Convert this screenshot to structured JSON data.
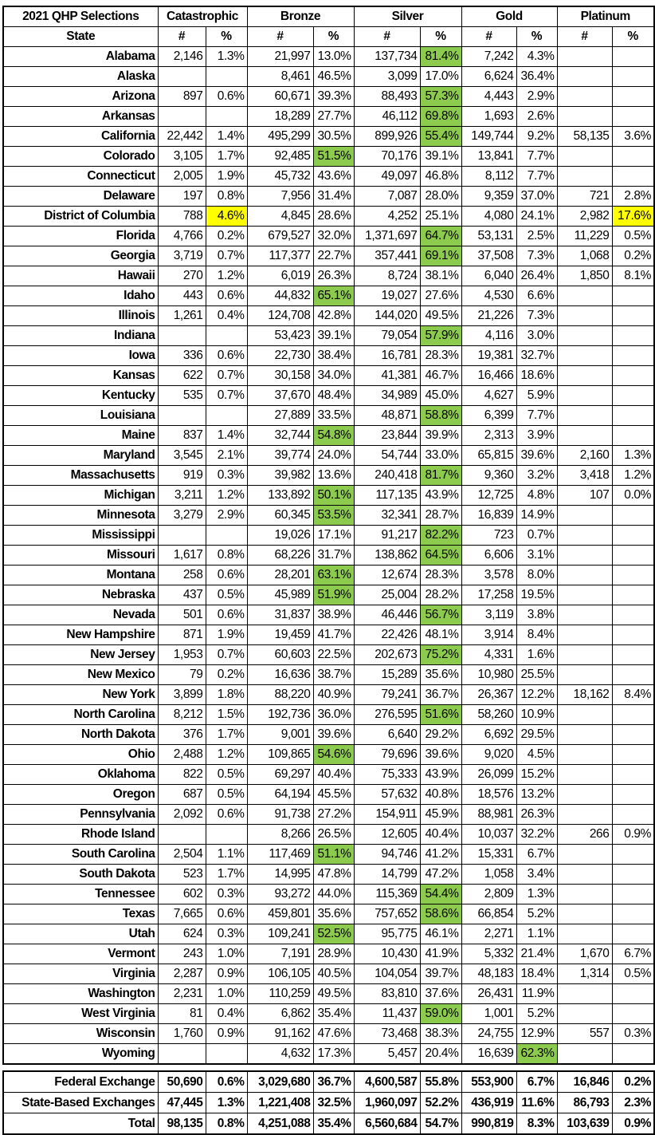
{
  "title": "2021 QHP Selections",
  "metal_levels": [
    "Catastrophic",
    "Bronze",
    "Silver",
    "Gold",
    "Platinum"
  ],
  "subheader": {
    "state": "State",
    "count": "#",
    "pct": "%"
  },
  "colors": {
    "majority_highlight": "#8DCB4F",
    "outlier_highlight": "#FFFF00",
    "border": "#000000"
  },
  "rows": [
    {
      "state": "Alabama",
      "values": [
        "2,146",
        "1.3%",
        "21,997",
        "13.0%",
        "137,734",
        "81.4%",
        "7,242",
        "4.3%",
        "",
        ""
      ],
      "green": [
        5
      ]
    },
    {
      "state": "Alaska",
      "values": [
        "",
        "",
        "8,461",
        "46.5%",
        "3,099",
        "17.0%",
        "6,624",
        "36.4%",
        "",
        ""
      ]
    },
    {
      "state": "Arizona",
      "values": [
        "897",
        "0.6%",
        "60,671",
        "39.3%",
        "88,493",
        "57.3%",
        "4,443",
        "2.9%",
        "",
        ""
      ],
      "green": [
        5
      ]
    },
    {
      "state": "Arkansas",
      "values": [
        "",
        "",
        "18,289",
        "27.7%",
        "46,112",
        "69.8%",
        "1,693",
        "2.6%",
        "",
        ""
      ],
      "green": [
        5
      ]
    },
    {
      "state": "California",
      "values": [
        "22,442",
        "1.4%",
        "495,299",
        "30.5%",
        "899,926",
        "55.4%",
        "149,744",
        "9.2%",
        "58,135",
        "3.6%"
      ],
      "green": [
        5
      ]
    },
    {
      "state": "Colorado",
      "values": [
        "3,105",
        "1.7%",
        "92,485",
        "51.5%",
        "70,176",
        "39.1%",
        "13,841",
        "7.7%",
        "",
        ""
      ],
      "green": [
        3
      ]
    },
    {
      "state": "Connecticut",
      "values": [
        "2,005",
        "1.9%",
        "45,732",
        "43.6%",
        "49,097",
        "46.8%",
        "8,112",
        "7.7%",
        "",
        ""
      ]
    },
    {
      "state": "Delaware",
      "values": [
        "197",
        "0.8%",
        "7,956",
        "31.4%",
        "7,087",
        "28.0%",
        "9,359",
        "37.0%",
        "721",
        "2.8%"
      ]
    },
    {
      "state": "District of Columbia",
      "values": [
        "788",
        "4.6%",
        "4,845",
        "28.6%",
        "4,252",
        "25.1%",
        "4,080",
        "24.1%",
        "2,982",
        "17.6%"
      ],
      "yellow": [
        1,
        9
      ]
    },
    {
      "state": "Florida",
      "values": [
        "4,766",
        "0.2%",
        "679,527",
        "32.0%",
        "1,371,697",
        "64.7%",
        "53,131",
        "2.5%",
        "11,229",
        "0.5%"
      ],
      "green": [
        5
      ]
    },
    {
      "state": "Georgia",
      "values": [
        "3,719",
        "0.7%",
        "117,377",
        "22.7%",
        "357,441",
        "69.1%",
        "37,508",
        "7.3%",
        "1,068",
        "0.2%"
      ],
      "green": [
        5
      ]
    },
    {
      "state": "Hawaii",
      "values": [
        "270",
        "1.2%",
        "6,019",
        "26.3%",
        "8,724",
        "38.1%",
        "6,040",
        "26.4%",
        "1,850",
        "8.1%"
      ]
    },
    {
      "state": "Idaho",
      "values": [
        "443",
        "0.6%",
        "44,832",
        "65.1%",
        "19,027",
        "27.6%",
        "4,530",
        "6.6%",
        "",
        ""
      ],
      "green": [
        3
      ]
    },
    {
      "state": "Illinois",
      "values": [
        "1,261",
        "0.4%",
        "124,708",
        "42.8%",
        "144,020",
        "49.5%",
        "21,226",
        "7.3%",
        "",
        ""
      ]
    },
    {
      "state": "Indiana",
      "values": [
        "",
        "",
        "53,423",
        "39.1%",
        "79,054",
        "57.9%",
        "4,116",
        "3.0%",
        "",
        ""
      ],
      "green": [
        5
      ]
    },
    {
      "state": "Iowa",
      "values": [
        "336",
        "0.6%",
        "22,730",
        "38.4%",
        "16,781",
        "28.3%",
        "19,381",
        "32.7%",
        "",
        ""
      ]
    },
    {
      "state": "Kansas",
      "values": [
        "622",
        "0.7%",
        "30,158",
        "34.0%",
        "41,381",
        "46.7%",
        "16,466",
        "18.6%",
        "",
        ""
      ]
    },
    {
      "state": "Kentucky",
      "values": [
        "535",
        "0.7%",
        "37,670",
        "48.4%",
        "34,989",
        "45.0%",
        "4,627",
        "5.9%",
        "",
        ""
      ]
    },
    {
      "state": "Louisiana",
      "values": [
        "",
        "",
        "27,889",
        "33.5%",
        "48,871",
        "58.8%",
        "6,399",
        "7.7%",
        "",
        ""
      ],
      "green": [
        5
      ]
    },
    {
      "state": "Maine",
      "values": [
        "837",
        "1.4%",
        "32,744",
        "54.8%",
        "23,844",
        "39.9%",
        "2,313",
        "3.9%",
        "",
        ""
      ],
      "green": [
        3
      ]
    },
    {
      "state": "Maryland",
      "values": [
        "3,545",
        "2.1%",
        "39,774",
        "24.0%",
        "54,744",
        "33.0%",
        "65,815",
        "39.6%",
        "2,160",
        "1.3%"
      ]
    },
    {
      "state": "Massachusetts",
      "values": [
        "919",
        "0.3%",
        "39,982",
        "13.6%",
        "240,418",
        "81.7%",
        "9,360",
        "3.2%",
        "3,418",
        "1.2%"
      ],
      "green": [
        5
      ]
    },
    {
      "state": "Michigan",
      "values": [
        "3,211",
        "1.2%",
        "133,892",
        "50.1%",
        "117,135",
        "43.9%",
        "12,725",
        "4.8%",
        "107",
        "0.0%"
      ],
      "green": [
        3
      ]
    },
    {
      "state": "Minnesota",
      "values": [
        "3,279",
        "2.9%",
        "60,345",
        "53.5%",
        "32,341",
        "28.7%",
        "16,839",
        "14.9%",
        "",
        ""
      ],
      "green": [
        3
      ]
    },
    {
      "state": "Mississippi",
      "values": [
        "",
        "",
        "19,026",
        "17.1%",
        "91,217",
        "82.2%",
        "723",
        "0.7%",
        "",
        ""
      ],
      "green": [
        5
      ]
    },
    {
      "state": "Missouri",
      "values": [
        "1,617",
        "0.8%",
        "68,226",
        "31.7%",
        "138,862",
        "64.5%",
        "6,606",
        "3.1%",
        "",
        ""
      ],
      "green": [
        5
      ]
    },
    {
      "state": "Montana",
      "values": [
        "258",
        "0.6%",
        "28,201",
        "63.1%",
        "12,674",
        "28.3%",
        "3,578",
        "8.0%",
        "",
        ""
      ],
      "green": [
        3
      ]
    },
    {
      "state": "Nebraska",
      "values": [
        "437",
        "0.5%",
        "45,989",
        "51.9%",
        "25,004",
        "28.2%",
        "17,258",
        "19.5%",
        "",
        ""
      ],
      "green": [
        3
      ]
    },
    {
      "state": "Nevada",
      "values": [
        "501",
        "0.6%",
        "31,837",
        "38.9%",
        "46,446",
        "56.7%",
        "3,119",
        "3.8%",
        "",
        ""
      ],
      "green": [
        5
      ]
    },
    {
      "state": "New Hampshire",
      "values": [
        "871",
        "1.9%",
        "19,459",
        "41.7%",
        "22,426",
        "48.1%",
        "3,914",
        "8.4%",
        "",
        ""
      ]
    },
    {
      "state": "New Jersey",
      "values": [
        "1,953",
        "0.7%",
        "60,603",
        "22.5%",
        "202,673",
        "75.2%",
        "4,331",
        "1.6%",
        "",
        ""
      ],
      "green": [
        5
      ]
    },
    {
      "state": "New Mexico",
      "values": [
        "79",
        "0.2%",
        "16,636",
        "38.7%",
        "15,289",
        "35.6%",
        "10,980",
        "25.5%",
        "",
        ""
      ]
    },
    {
      "state": "New York",
      "values": [
        "3,899",
        "1.8%",
        "88,220",
        "40.9%",
        "79,241",
        "36.7%",
        "26,367",
        "12.2%",
        "18,162",
        "8.4%"
      ]
    },
    {
      "state": "North Carolina",
      "values": [
        "8,212",
        "1.5%",
        "192,736",
        "36.0%",
        "276,595",
        "51.6%",
        "58,260",
        "10.9%",
        "",
        ""
      ],
      "green": [
        5
      ]
    },
    {
      "state": "North Dakota",
      "values": [
        "376",
        "1.7%",
        "9,001",
        "39.6%",
        "6,640",
        "29.2%",
        "6,692",
        "29.5%",
        "",
        ""
      ]
    },
    {
      "state": "Ohio",
      "values": [
        "2,488",
        "1.2%",
        "109,865",
        "54.6%",
        "79,696",
        "39.6%",
        "9,020",
        "4.5%",
        "",
        ""
      ],
      "green": [
        3
      ]
    },
    {
      "state": "Oklahoma",
      "values": [
        "822",
        "0.5%",
        "69,297",
        "40.4%",
        "75,333",
        "43.9%",
        "26,099",
        "15.2%",
        "",
        ""
      ]
    },
    {
      "state": "Oregon",
      "values": [
        "687",
        "0.5%",
        "64,194",
        "45.5%",
        "57,632",
        "40.8%",
        "18,576",
        "13.2%",
        "",
        ""
      ]
    },
    {
      "state": "Pennsylvania",
      "values": [
        "2,092",
        "0.6%",
        "91,738",
        "27.2%",
        "154,911",
        "45.9%",
        "88,981",
        "26.3%",
        "",
        ""
      ]
    },
    {
      "state": "Rhode Island",
      "values": [
        "",
        "",
        "8,266",
        "26.5%",
        "12,605",
        "40.4%",
        "10,037",
        "32.2%",
        "266",
        "0.9%"
      ]
    },
    {
      "state": "South Carolina",
      "values": [
        "2,504",
        "1.1%",
        "117,469",
        "51.1%",
        "94,746",
        "41.2%",
        "15,331",
        "6.7%",
        "",
        ""
      ],
      "green": [
        3
      ]
    },
    {
      "state": "South Dakota",
      "values": [
        "523",
        "1.7%",
        "14,995",
        "47.8%",
        "14,799",
        "47.2%",
        "1,058",
        "3.4%",
        "",
        ""
      ]
    },
    {
      "state": "Tennessee",
      "values": [
        "602",
        "0.3%",
        "93,272",
        "44.0%",
        "115,369",
        "54.4%",
        "2,809",
        "1.3%",
        "",
        ""
      ],
      "green": [
        5
      ]
    },
    {
      "state": "Texas",
      "values": [
        "7,665",
        "0.6%",
        "459,801",
        "35.6%",
        "757,652",
        "58.6%",
        "66,854",
        "5.2%",
        "",
        ""
      ],
      "green": [
        5
      ]
    },
    {
      "state": "Utah",
      "values": [
        "624",
        "0.3%",
        "109,241",
        "52.5%",
        "95,775",
        "46.1%",
        "2,271",
        "1.1%",
        "",
        ""
      ],
      "green": [
        3
      ]
    },
    {
      "state": "Vermont",
      "values": [
        "243",
        "1.0%",
        "7,191",
        "28.9%",
        "10,430",
        "41.9%",
        "5,332",
        "21.4%",
        "1,670",
        "6.7%"
      ]
    },
    {
      "state": "Virginia",
      "values": [
        "2,287",
        "0.9%",
        "106,105",
        "40.5%",
        "104,054",
        "39.7%",
        "48,183",
        "18.4%",
        "1,314",
        "0.5%"
      ]
    },
    {
      "state": "Washington",
      "values": [
        "2,231",
        "1.0%",
        "110,259",
        "49.5%",
        "83,810",
        "37.6%",
        "26,431",
        "11.9%",
        "",
        ""
      ]
    },
    {
      "state": "West Virginia",
      "values": [
        "81",
        "0.4%",
        "6,862",
        "35.4%",
        "11,437",
        "59.0%",
        "1,001",
        "5.2%",
        "",
        ""
      ],
      "green": [
        5
      ]
    },
    {
      "state": "Wisconsin",
      "values": [
        "1,760",
        "0.9%",
        "91,162",
        "47.6%",
        "73,468",
        "38.3%",
        "24,755",
        "12.9%",
        "557",
        "0.3%"
      ]
    },
    {
      "state": "Wyoming",
      "values": [
        "",
        "",
        "4,632",
        "17.3%",
        "5,457",
        "20.4%",
        "16,639",
        "62.3%",
        "",
        ""
      ],
      "green": [
        7
      ]
    }
  ],
  "summary": [
    {
      "state": "Federal Exchange",
      "values": [
        "50,690",
        "0.6%",
        "3,029,680",
        "36.7%",
        "4,600,587",
        "55.8%",
        "553,900",
        "6.7%",
        "16,846",
        "0.2%"
      ]
    },
    {
      "state": "State-Based Exchanges",
      "values": [
        "47,445",
        "1.3%",
        "1,221,408",
        "32.5%",
        "1,960,097",
        "52.2%",
        "436,919",
        "11.6%",
        "86,793",
        "2.3%"
      ]
    },
    {
      "state": "Total",
      "values": [
        "98,135",
        "0.8%",
        "4,251,088",
        "35.4%",
        "6,560,684",
        "54.7%",
        "990,819",
        "8.3%",
        "103,639",
        "0.9%"
      ]
    }
  ]
}
